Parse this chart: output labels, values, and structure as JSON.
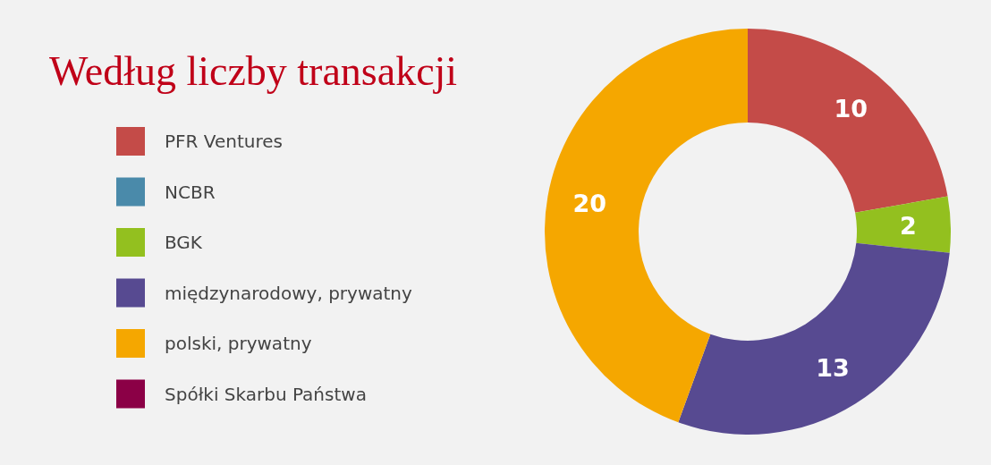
{
  "chart_data": {
    "type": "donut",
    "title": "Według liczby transakcji",
    "categories": [
      "PFR Ventures",
      "NCBR",
      "BGK",
      "międzynarodowy, prywatny",
      "polski, prywatny",
      "Spółki Skarbu Państwa"
    ],
    "values": [
      10,
      0,
      2,
      13,
      20,
      0
    ],
    "colors": [
      "#c44b48",
      "#4a8aaa",
      "#93c01f",
      "#574a91",
      "#f5a700",
      "#8b0046"
    ],
    "data_labels": true,
    "legend": "left"
  }
}
